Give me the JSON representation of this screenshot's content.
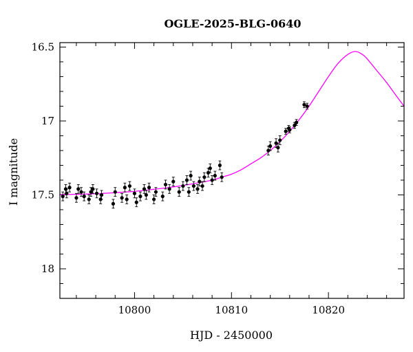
{
  "chart_data": {
    "type": "scatter",
    "title": "OGLE-2025-BLG-0640",
    "xlabel": "HJD - 2450000",
    "ylabel": "I magnitude",
    "xlim": [
      10792.3,
      10827.8
    ],
    "ylim": [
      18.2,
      16.47
    ],
    "y_inverted": true,
    "grid": false,
    "x_major_ticks": [
      10800,
      10810,
      10820
    ],
    "x_tick_labels": [
      "10800",
      "10810",
      "10820"
    ],
    "x_minor_step": 2,
    "y_major_ticks": [
      16.5,
      17,
      17.5,
      18
    ],
    "y_tick_labels": [
      "16.5",
      "17",
      "17.5",
      "18"
    ],
    "y_minor_step": 0.1,
    "colors": {
      "data": "#000000",
      "model": "#ff00ff"
    },
    "series": [
      {
        "kind": "points_with_errorbars",
        "x": [
          10792.6,
          10792.9,
          10793.0,
          10793.3,
          10794.0,
          10794.2,
          10794.5,
          10794.8,
          10795.3,
          10795.5,
          10795.7,
          10796.1,
          10796.5,
          10796.6,
          10797.8,
          10798.0,
          10798.7,
          10799.0,
          10799.2,
          10799.5,
          10800.0,
          10800.2,
          10800.6,
          10801.0,
          10801.2,
          10801.5,
          10802.0,
          10802.2,
          10802.9,
          10803.2,
          10803.6,
          10804.0,
          10804.6,
          10805.0,
          10805.4,
          10805.6,
          10805.8,
          10806.1,
          10806.5,
          10806.7,
          10807.0,
          10807.2,
          10807.6,
          10807.8,
          10808.0,
          10808.3,
          10808.8,
          10809.0,
          10813.8,
          10814.0,
          10814.6,
          10814.8,
          10815.0,
          10815.6,
          10815.9,
          10816.0,
          10816.5,
          10816.7,
          10817.5,
          10817.8
        ],
        "y": [
          17.51,
          17.46,
          17.49,
          17.45,
          17.52,
          17.46,
          17.48,
          17.51,
          17.53,
          17.48,
          17.46,
          17.49,
          17.53,
          17.5,
          17.56,
          17.48,
          17.52,
          17.45,
          17.53,
          17.44,
          17.49,
          17.55,
          17.51,
          17.46,
          17.5,
          17.45,
          17.53,
          17.48,
          17.51,
          17.43,
          17.46,
          17.41,
          17.48,
          17.44,
          17.4,
          17.48,
          17.37,
          17.44,
          17.46,
          17.41,
          17.44,
          17.38,
          17.35,
          17.32,
          17.4,
          17.37,
          17.3,
          17.38,
          17.2,
          17.17,
          17.15,
          17.18,
          17.13,
          17.07,
          17.05,
          17.06,
          17.03,
          17.01,
          16.89,
          16.9
        ],
        "yerr": [
          0.03,
          0.03,
          0.03,
          0.03,
          0.03,
          0.03,
          0.03,
          0.03,
          0.03,
          0.03,
          0.03,
          0.03,
          0.03,
          0.03,
          0.03,
          0.03,
          0.03,
          0.03,
          0.03,
          0.03,
          0.03,
          0.03,
          0.03,
          0.03,
          0.03,
          0.03,
          0.03,
          0.03,
          0.03,
          0.03,
          0.03,
          0.03,
          0.03,
          0.03,
          0.03,
          0.03,
          0.03,
          0.03,
          0.03,
          0.03,
          0.03,
          0.03,
          0.03,
          0.03,
          0.03,
          0.03,
          0.03,
          0.03,
          0.03,
          0.03,
          0.03,
          0.03,
          0.03,
          0.02,
          0.02,
          0.02,
          0.02,
          0.02,
          0.02,
          0.02
        ]
      },
      {
        "kind": "model_curve",
        "x": [
          10792.3,
          10794,
          10796,
          10798,
          10800,
          10802,
          10804,
          10806,
          10808,
          10809,
          10810,
          10811,
          10812,
          10813,
          10814,
          10815,
          10816,
          10817,
          10818,
          10819,
          10820,
          10821,
          10822,
          10822.8,
          10823.5,
          10824,
          10825,
          10826,
          10827,
          10827.8
        ],
        "y": [
          17.498,
          17.496,
          17.492,
          17.485,
          17.476,
          17.462,
          17.446,
          17.425,
          17.4,
          17.38,
          17.36,
          17.33,
          17.29,
          17.25,
          17.2,
          17.14,
          17.07,
          16.99,
          16.9,
          16.8,
          16.7,
          16.61,
          16.55,
          16.53,
          16.55,
          16.58,
          16.66,
          16.74,
          16.83,
          16.9
        ]
      }
    ]
  }
}
